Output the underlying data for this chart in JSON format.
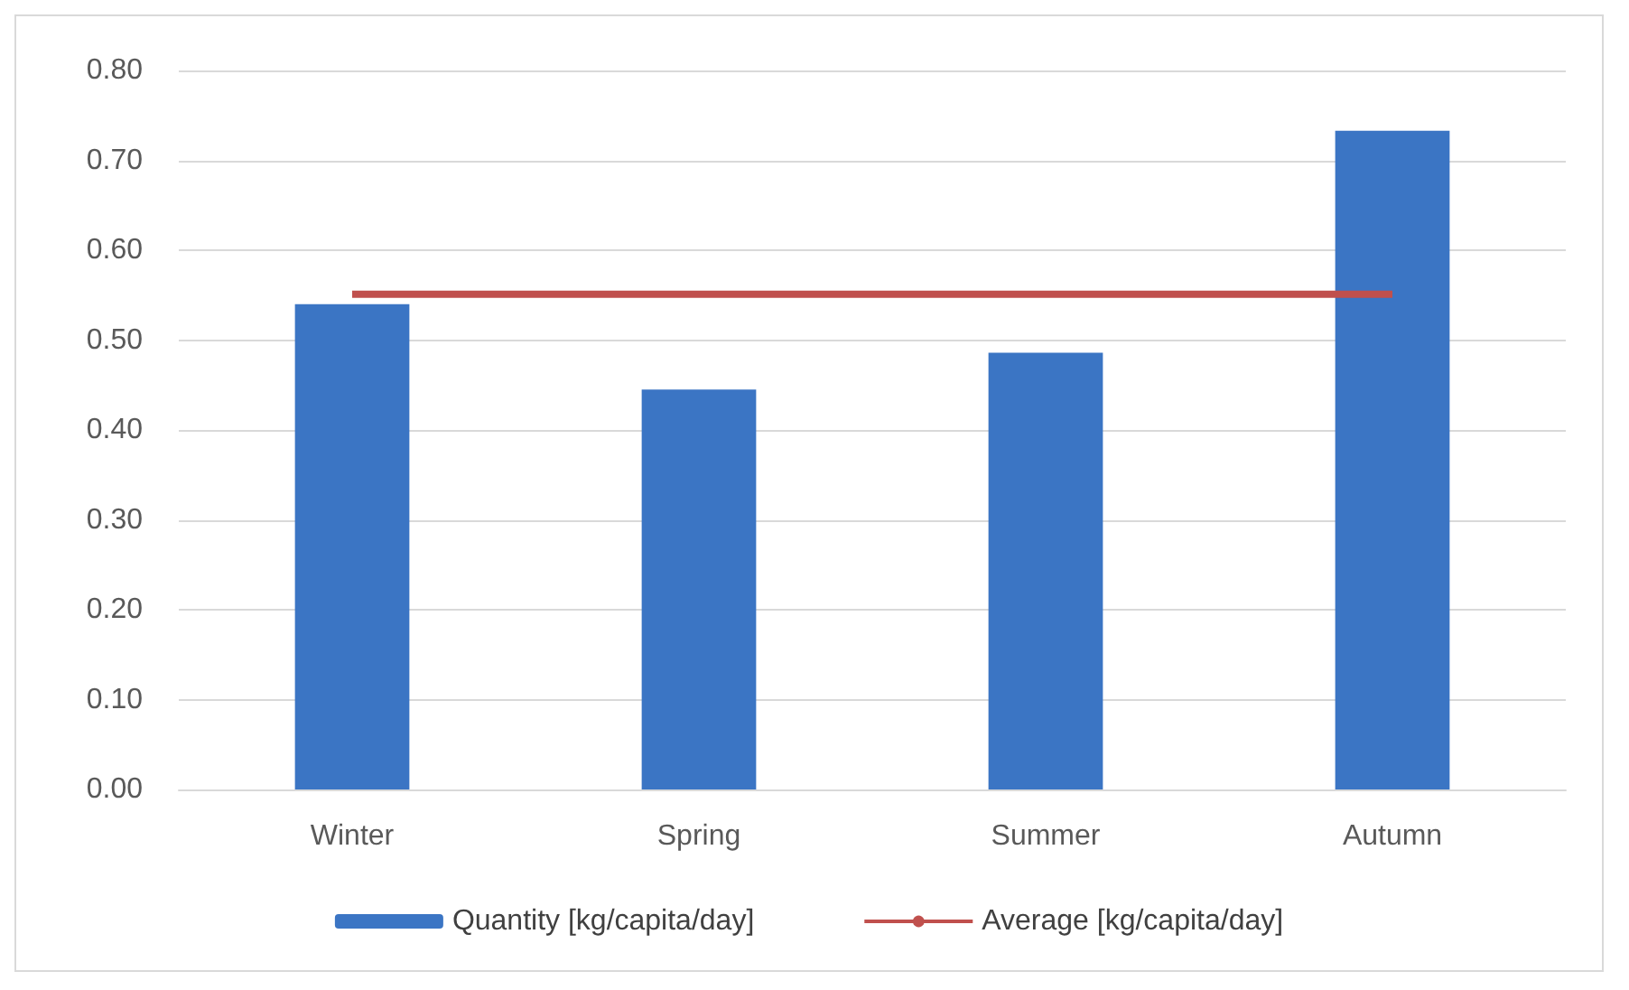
{
  "chart_data": {
    "type": "bar",
    "categories": [
      "Winter",
      "Spring",
      "Summer",
      "Autumn"
    ],
    "series": [
      {
        "name": "Quantity [kg/capita/day]",
        "color": "#3b75c4",
        "values": [
          0.54,
          0.445,
          0.486,
          0.733
        ]
      },
      {
        "name": "Average [kg/capita/day]",
        "type": "line",
        "color": "#c0504d",
        "values": [
          0.551,
          0.551,
          0.551,
          0.551
        ]
      }
    ],
    "ylim": [
      0,
      0.8
    ],
    "yticks": [
      {
        "value": 0,
        "label": "0.00"
      },
      {
        "value": 0.1,
        "label": "0.10"
      },
      {
        "value": 0.2,
        "label": "0.20"
      },
      {
        "value": 0.3,
        "label": "0.30"
      },
      {
        "value": 0.4,
        "label": "0.40"
      },
      {
        "value": 0.5,
        "label": "0.50"
      },
      {
        "value": 0.6,
        "label": "0.60"
      },
      {
        "value": 0.7,
        "label": "0.70"
      },
      {
        "value": 0.8,
        "label": "0.80"
      }
    ],
    "grid": "y",
    "legend": "bottom",
    "marker": "none"
  }
}
